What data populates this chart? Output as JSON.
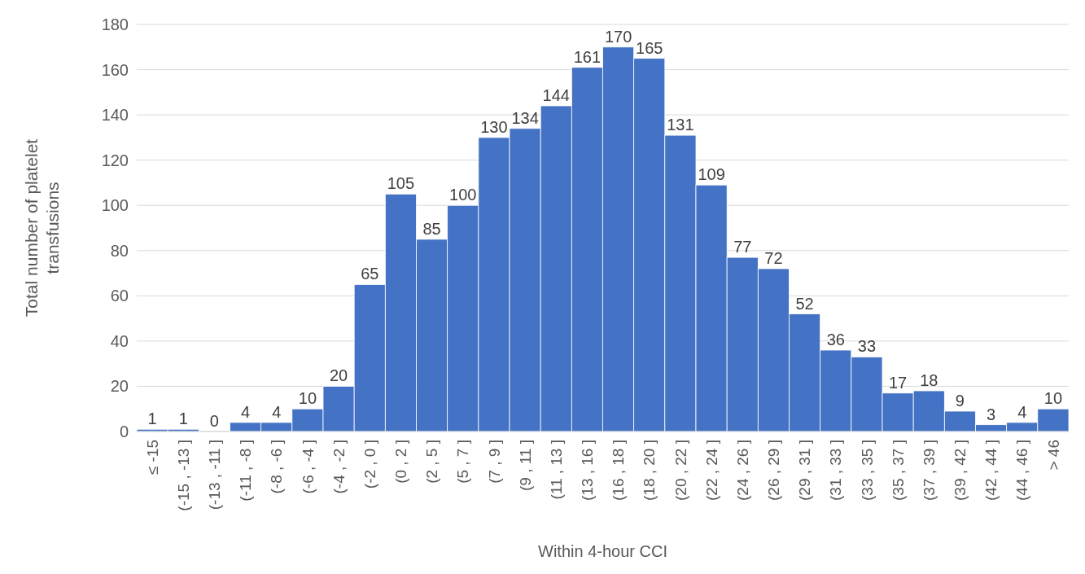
{
  "chart_data": {
    "type": "bar",
    "xlabel": "Within 4-hour CCI",
    "ylabel": "Total number of platelet transfusions",
    "categories": [
      "≤ -15",
      "(-15 , -13 ]",
      "(-13 , -11 ]",
      "(-11 , -8 ]",
      "(-8 , -6 ]",
      "(-6 , -4 ]",
      "(-4 , -2 ]",
      "(-2 , 0 ]",
      "(0 , 2 ]",
      "(2 , 5 ]",
      "(5 , 7 ]",
      "(7 , 9 ]",
      "(9 , 11 ]",
      "(11 , 13 ]",
      "(13 , 16 ]",
      "(16 , 18 ]",
      "(18 , 20 ]",
      "(20 , 22 ]",
      "(22 , 24 ]",
      "(24 , 26 ]",
      "(26 , 29 ]",
      "(29 , 31 ]",
      "(31 , 33 ]",
      "(33 , 35 ]",
      "(35 , 37 ]",
      "(37 , 39 ]",
      "(39 , 42 ]",
      "(42 , 44 ]",
      "(44 , 46 ]",
      "> 46"
    ],
    "values": [
      1,
      1,
      0,
      4,
      4,
      10,
      20,
      65,
      105,
      85,
      100,
      130,
      134,
      144,
      161,
      170,
      165,
      131,
      109,
      77,
      72,
      52,
      36,
      33,
      17,
      18,
      9,
      3,
      4,
      10
    ],
    "color": "#4472c4",
    "ylim": [
      0,
      180
    ],
    "yticks": [
      0,
      20,
      40,
      60,
      80,
      100,
      120,
      140,
      160,
      180
    ],
    "grid": "y",
    "data_labels": true
  }
}
